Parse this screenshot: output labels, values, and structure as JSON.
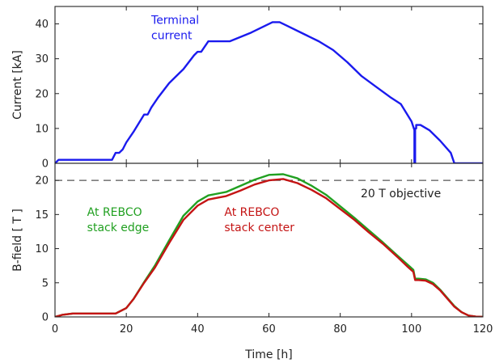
{
  "chart_data": [
    {
      "type": "line",
      "xlabel": "",
      "ylabel": "Current [kA]",
      "xlim": [
        0,
        120
      ],
      "ylim": [
        0,
        45
      ],
      "xticks": [
        0,
        20,
        40,
        60,
        80,
        100,
        120
      ],
      "yticks": [
        0,
        10,
        20,
        30,
        40
      ],
      "show_x_tick_labels": false,
      "annotations": [
        {
          "text_lines": [
            "Terminal",
            "current"
          ],
          "color": "#1a1aee",
          "x": 27,
          "y": 40
        }
      ],
      "series": [
        {
          "color": "#1a1aee",
          "x": [
            0,
            0.5,
            1,
            16,
            17,
            18,
            19,
            20,
            22,
            25,
            26,
            27,
            29,
            32,
            35,
            36,
            39,
            40,
            41,
            43,
            45,
            49,
            55,
            61,
            63,
            65,
            70,
            74,
            78,
            82,
            86,
            90,
            94,
            97,
            100,
            100.8,
            100.8,
            101,
            101,
            101.3,
            101.3,
            102.5,
            105,
            108,
            111,
            112,
            120
          ],
          "y": [
            0,
            0.5,
            1,
            1,
            3,
            3,
            4,
            6,
            9,
            14,
            14,
            16,
            19,
            23,
            26,
            27,
            31,
            32,
            32,
            35,
            35,
            35,
            37.5,
            40.5,
            40.5,
            39.5,
            37,
            35,
            32.5,
            29,
            25,
            22,
            19,
            17,
            12,
            9.5,
            0,
            0,
            10,
            10,
            11,
            11,
            9.5,
            6.5,
            3,
            0,
            0
          ]
        }
      ]
    },
    {
      "type": "line",
      "xlabel": "Time [h]",
      "ylabel": "B-field [ T ]",
      "xlim": [
        0,
        120
      ],
      "ylim": [
        0,
        22.5
      ],
      "xticks": [
        0,
        20,
        40,
        60,
        80,
        100,
        120
      ],
      "yticks": [
        0,
        5,
        10,
        15,
        20
      ],
      "reference_line": {
        "y": 20,
        "style": "dashed",
        "color": "#555555",
        "label": "20 T objective"
      },
      "annotations": [
        {
          "text_lines": [
            "At REBCO",
            "stack edge"
          ],
          "color": "#21a021",
          "x": 9,
          "y": 14.8
        },
        {
          "text_lines": [
            "At REBCO",
            "stack center"
          ],
          "color": "#c41414",
          "x": 47.5,
          "y": 14.8
        }
      ],
      "series": [
        {
          "name": "At REBCO stack edge",
          "color": "#21a021",
          "x": [
            0,
            2,
            5,
            10,
            15,
            17,
            20,
            22,
            25,
            28,
            32,
            36,
            40,
            43,
            45,
            48,
            52,
            56,
            60,
            64,
            68,
            72,
            76,
            80,
            84,
            88,
            92,
            96,
            99,
            100.5,
            101,
            102,
            104,
            106,
            108,
            110,
            112,
            114,
            116,
            118,
            120
          ],
          "y": [
            0,
            0.3,
            0.5,
            0.5,
            0.5,
            0.5,
            1.3,
            2.6,
            5.1,
            7.5,
            11.2,
            14.8,
            16.9,
            17.8,
            18.0,
            18.3,
            19.2,
            20.1,
            20.8,
            20.9,
            20.3,
            19.2,
            17.9,
            16.2,
            14.5,
            12.7,
            10.9,
            9.0,
            7.6,
            6.9,
            5.6,
            5.6,
            5.5,
            5.0,
            4.0,
            2.8,
            1.6,
            0.7,
            0.2,
            0.05,
            0
          ]
        },
        {
          "name": "At REBCO stack center",
          "color": "#c41414",
          "x": [
            0,
            2,
            5,
            10,
            15,
            17,
            20,
            22,
            25,
            28,
            32,
            36,
            40,
            43,
            45,
            48,
            52,
            56,
            60,
            64,
            68,
            72,
            76,
            80,
            84,
            88,
            92,
            96,
            99,
            100.5,
            101,
            102,
            104,
            106,
            108,
            110,
            112,
            114,
            116,
            118,
            120
          ],
          "y": [
            0,
            0.3,
            0.5,
            0.5,
            0.5,
            0.5,
            1.3,
            2.6,
            5.0,
            7.2,
            10.8,
            14.2,
            16.3,
            17.2,
            17.4,
            17.7,
            18.5,
            19.4,
            20.0,
            20.2,
            19.6,
            18.6,
            17.4,
            15.8,
            14.2,
            12.4,
            10.7,
            8.8,
            7.3,
            6.6,
            5.4,
            5.4,
            5.3,
            4.8,
            3.9,
            2.7,
            1.5,
            0.7,
            0.2,
            0.05,
            0
          ]
        }
      ]
    }
  ]
}
